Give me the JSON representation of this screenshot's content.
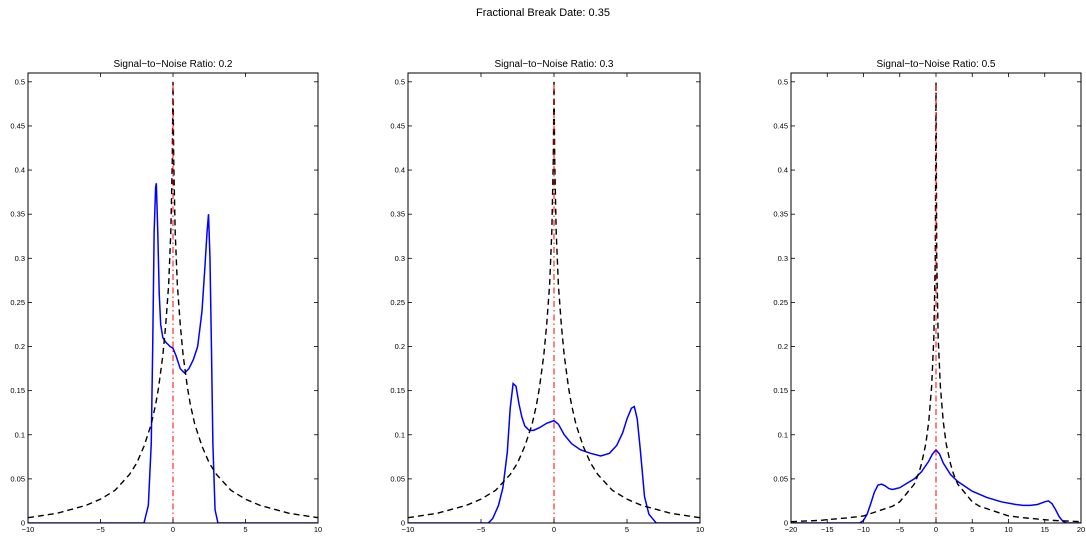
{
  "figure": {
    "suptitle": "Fractional Break Date: 0.35"
  },
  "colors": {
    "estimated_density": "#0000ff",
    "asymptotic_density": "#000000",
    "true_break": "#ff0000",
    "axes": "#000000",
    "background": "#ffffff"
  },
  "chart_data": [
    {
      "type": "line",
      "title": "Signal−to−Noise Ratio: 0.2",
      "xlabel": "",
      "ylabel": "",
      "xlim": [
        -10,
        10
      ],
      "ylim": [
        0,
        0.51
      ],
      "xticks": [
        -10,
        -5,
        0,
        5,
        10
      ],
      "xtick_labels": [
        "−10",
        "−5",
        "0",
        "5",
        "10"
      ],
      "yticks": [
        0,
        0.05,
        0.1,
        0.15,
        0.2,
        0.25,
        0.3,
        0.35,
        0.4,
        0.45,
        0.5
      ],
      "ytick_labels": [
        "0",
        "0.05",
        "0.1",
        "0.15",
        "0.2",
        "0.25",
        "0.3",
        "0.35",
        "0.4",
        "0.45",
        "0.5"
      ],
      "grid": false,
      "legend": "none",
      "series": [
        {
          "style": "solid",
          "color": "#0000ff",
          "x": [
            -10,
            -2.0,
            -1.7,
            -1.5,
            -1.4,
            -1.3,
            -1.2,
            -1.15,
            -1.05,
            -0.95,
            -0.85,
            -0.7,
            -0.5,
            -0.2,
            0.0,
            0.2,
            0.5,
            0.8,
            1.1,
            1.4,
            1.7,
            2.0,
            2.2,
            2.35,
            2.45,
            2.55,
            2.65,
            2.75,
            2.9,
            3.1,
            10
          ],
          "y": [
            0,
            0,
            0.02,
            0.09,
            0.2,
            0.33,
            0.38,
            0.385,
            0.33,
            0.26,
            0.225,
            0.21,
            0.205,
            0.2,
            0.198,
            0.19,
            0.175,
            0.17,
            0.175,
            0.185,
            0.2,
            0.24,
            0.29,
            0.33,
            0.35,
            0.3,
            0.2,
            0.09,
            0.015,
            0,
            0
          ]
        },
        {
          "style": "dashed",
          "color": "#000000",
          "x": [
            -10,
            -8,
            -6,
            -5,
            -4,
            -3,
            -2.5,
            -2,
            -1.5,
            -1.2,
            -1,
            -0.7,
            -0.5,
            -0.3,
            -0.15,
            -0.05,
            0,
            0.05,
            0.15,
            0.3,
            0.5,
            0.7,
            1,
            1.2,
            1.5,
            2,
            2.5,
            3,
            4,
            5,
            6,
            8,
            10
          ],
          "y": [
            0.006,
            0.011,
            0.02,
            0.027,
            0.037,
            0.055,
            0.068,
            0.087,
            0.112,
            0.134,
            0.153,
            0.19,
            0.225,
            0.27,
            0.33,
            0.41,
            0.5,
            0.41,
            0.33,
            0.27,
            0.225,
            0.19,
            0.153,
            0.134,
            0.112,
            0.087,
            0.068,
            0.055,
            0.037,
            0.027,
            0.02,
            0.011,
            0.006
          ]
        }
      ],
      "vline": {
        "x": 0,
        "style": "dashdot",
        "color": "#ff0000",
        "ymax": 0.5
      }
    },
    {
      "type": "line",
      "title": "Signal−to−Noise Ratio: 0.3",
      "xlabel": "",
      "ylabel": "",
      "xlim": [
        -10,
        10
      ],
      "ylim": [
        0,
        0.51
      ],
      "xticks": [
        -10,
        -5,
        0,
        5,
        10
      ],
      "xtick_labels": [
        "−10",
        "−5",
        "0",
        "5",
        "10"
      ],
      "yticks": [
        0,
        0.05,
        0.1,
        0.15,
        0.2,
        0.25,
        0.3,
        0.35,
        0.4,
        0.45,
        0.5
      ],
      "ytick_labels": [
        "0",
        "0.05",
        "0.1",
        "0.15",
        "0.2",
        "0.25",
        "0.3",
        "0.35",
        "0.4",
        "0.45",
        "0.5"
      ],
      "grid": false,
      "legend": "none",
      "series": [
        {
          "style": "solid",
          "color": "#0000ff",
          "x": [
            -10,
            -4.5,
            -4.2,
            -3.8,
            -3.5,
            -3.2,
            -3.0,
            -2.8,
            -2.6,
            -2.4,
            -2.2,
            -2.0,
            -1.7,
            -1.4,
            -1.0,
            -0.5,
            0.0,
            0.3,
            0.7,
            1.2,
            1.8,
            2.5,
            3.2,
            3.8,
            4.3,
            4.7,
            5.0,
            5.3,
            5.5,
            5.7,
            5.9,
            6.2,
            6.5,
            7.0,
            10
          ],
          "y": [
            0,
            0,
            0.005,
            0.02,
            0.04,
            0.08,
            0.13,
            0.158,
            0.155,
            0.135,
            0.12,
            0.11,
            0.105,
            0.105,
            0.108,
            0.113,
            0.116,
            0.112,
            0.1,
            0.09,
            0.083,
            0.079,
            0.076,
            0.079,
            0.088,
            0.102,
            0.118,
            0.13,
            0.132,
            0.118,
            0.085,
            0.03,
            0.01,
            0,
            0
          ]
        },
        {
          "style": "dashed",
          "color": "#000000",
          "x": [
            -10,
            -8,
            -6,
            -5,
            -4,
            -3,
            -2.5,
            -2,
            -1.5,
            -1.2,
            -1,
            -0.7,
            -0.5,
            -0.3,
            -0.15,
            -0.05,
            0,
            0.05,
            0.15,
            0.3,
            0.5,
            0.7,
            1,
            1.2,
            1.5,
            2,
            2.5,
            3,
            4,
            5,
            6,
            8,
            10
          ],
          "y": [
            0.006,
            0.011,
            0.02,
            0.027,
            0.037,
            0.055,
            0.068,
            0.087,
            0.112,
            0.134,
            0.153,
            0.19,
            0.225,
            0.27,
            0.33,
            0.41,
            0.5,
            0.41,
            0.33,
            0.27,
            0.225,
            0.19,
            0.153,
            0.134,
            0.112,
            0.087,
            0.068,
            0.055,
            0.037,
            0.027,
            0.02,
            0.011,
            0.006
          ]
        }
      ],
      "vline": {
        "x": 0,
        "style": "dashdot",
        "color": "#ff0000",
        "ymax": 0.5
      }
    },
    {
      "type": "line",
      "title": "Signal−to−Noise Ratio: 0.5",
      "xlabel": "",
      "ylabel": "",
      "xlim": [
        -20,
        20
      ],
      "ylim": [
        0,
        0.51
      ],
      "xticks": [
        -20,
        -15,
        -10,
        -5,
        0,
        5,
        10,
        15,
        20
      ],
      "xtick_labels": [
        "−20",
        "−15",
        "−10",
        "−5",
        "0",
        "5",
        "10",
        "15",
        "20"
      ],
      "yticks": [
        0,
        0.05,
        0.1,
        0.15,
        0.2,
        0.25,
        0.3,
        0.35,
        0.4,
        0.45,
        0.5
      ],
      "ytick_labels": [
        "0",
        "0.05",
        "0.1",
        "0.15",
        "0.2",
        "0.25",
        "0.3",
        "0.35",
        "0.4",
        "0.45",
        "0.5"
      ],
      "grid": false,
      "legend": "none",
      "series": [
        {
          "style": "solid",
          "color": "#0000ff",
          "x": [
            -20,
            -10.5,
            -10,
            -9.5,
            -9,
            -8.5,
            -8,
            -7.5,
            -7,
            -6.5,
            -6,
            -5,
            -4,
            -3,
            -2,
            -1,
            -0.5,
            0,
            0.5,
            1,
            2,
            3,
            5,
            7,
            9,
            11,
            12,
            13,
            14,
            15,
            15.5,
            16,
            16.5,
            17,
            17.5,
            18,
            20
          ],
          "y": [
            0,
            0,
            0.003,
            0.01,
            0.022,
            0.035,
            0.043,
            0.044,
            0.042,
            0.039,
            0.038,
            0.04,
            0.045,
            0.05,
            0.058,
            0.07,
            0.078,
            0.083,
            0.078,
            0.068,
            0.055,
            0.047,
            0.036,
            0.029,
            0.024,
            0.021,
            0.02,
            0.02,
            0.021,
            0.024,
            0.025,
            0.022,
            0.015,
            0.007,
            0.002,
            0,
            0
          ]
        },
        {
          "style": "dashed",
          "color": "#000000",
          "x": [
            -20,
            -16,
            -12,
            -10,
            -8,
            -6,
            -5,
            -4,
            -3,
            -2.4,
            -2,
            -1.4,
            -1,
            -0.6,
            -0.3,
            -0.1,
            0,
            0.1,
            0.3,
            0.6,
            1,
            1.4,
            2,
            2.4,
            3,
            4,
            5,
            6,
            8,
            10,
            12,
            16,
            20
          ],
          "y": [
            0.0015,
            0.003,
            0.006,
            0.008,
            0.0135,
            0.019,
            0.024,
            0.034,
            0.044,
            0.056,
            0.067,
            0.09,
            0.115,
            0.155,
            0.21,
            0.3,
            0.5,
            0.3,
            0.21,
            0.155,
            0.115,
            0.09,
            0.067,
            0.056,
            0.044,
            0.034,
            0.024,
            0.019,
            0.0135,
            0.008,
            0.006,
            0.003,
            0.0015
          ]
        }
      ],
      "vline": {
        "x": 0,
        "style": "dashdot",
        "color": "#ff0000",
        "ymax": 0.5
      }
    }
  ]
}
